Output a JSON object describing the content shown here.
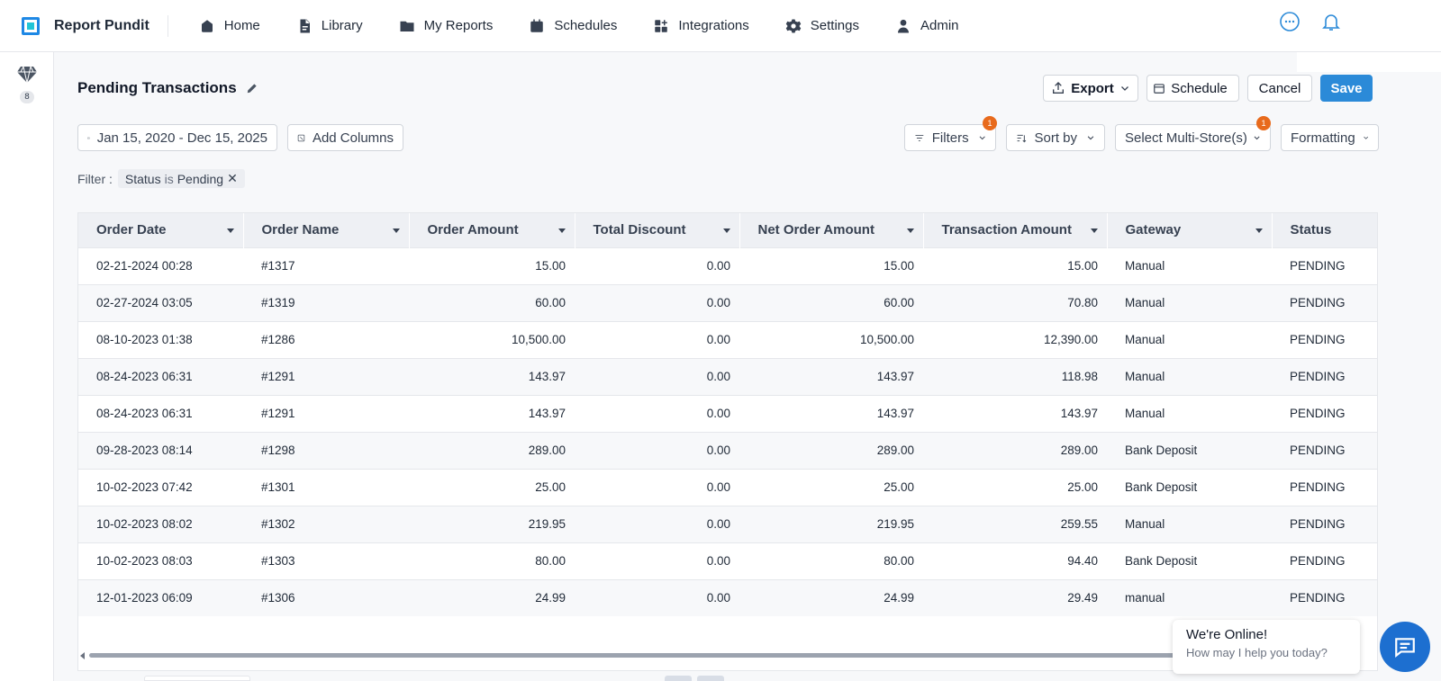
{
  "app": {
    "name": "Report Pundit"
  },
  "nav": [
    {
      "label": "Home",
      "icon": "home-icon"
    },
    {
      "label": "Library",
      "icon": "document-icon"
    },
    {
      "label": "My Reports",
      "icon": "folder-icon"
    },
    {
      "label": "Schedules",
      "icon": "calendar-icon"
    },
    {
      "label": "Integrations",
      "icon": "apps-icon"
    },
    {
      "label": "Settings",
      "icon": "gear-icon"
    },
    {
      "label": "Admin",
      "icon": "user-icon"
    }
  ],
  "rail": {
    "count": "8"
  },
  "report": {
    "title": "Pending Transactions"
  },
  "actions": {
    "export": "Export",
    "schedule": "Schedule",
    "cancel": "Cancel",
    "save": "Save"
  },
  "toolbar": {
    "date_range": "Jan 15, 2020 - Dec 15, 2025",
    "add_columns": "Add Columns",
    "filters": "Filters",
    "filters_badge": "1",
    "sort_by": "Sort by",
    "multi_store": "Select Multi-Store(s)",
    "multi_store_badge": "1",
    "formatting": "Formatting"
  },
  "filter": {
    "label": "Filter :",
    "field": "Status",
    "op": "is",
    "value": "Pending"
  },
  "table": {
    "columns": [
      "Order Date",
      "Order Name",
      "Order Amount",
      "Total Discount",
      "Net Order Amount",
      "Transaction Amount",
      "Gateway",
      "Status"
    ],
    "rows": [
      [
        "02-21-2024 00:28",
        "#1317",
        "15.00",
        "0.00",
        "15.00",
        "15.00",
        "Manual",
        "PENDING"
      ],
      [
        "02-27-2024 03:05",
        "#1319",
        "60.00",
        "0.00",
        "60.00",
        "70.80",
        "Manual",
        "PENDING"
      ],
      [
        "08-10-2023 01:38",
        "#1286",
        "10,500.00",
        "0.00",
        "10,500.00",
        "12,390.00",
        "Manual",
        "PENDING"
      ],
      [
        "08-24-2023 06:31",
        "#1291",
        "143.97",
        "0.00",
        "143.97",
        "118.98",
        "Manual",
        "PENDING"
      ],
      [
        "08-24-2023 06:31",
        "#1291",
        "143.97",
        "0.00",
        "143.97",
        "143.97",
        "Manual",
        "PENDING"
      ],
      [
        "09-28-2023 08:14",
        "#1298",
        "289.00",
        "0.00",
        "289.00",
        "289.00",
        "Bank Deposit",
        "PENDING"
      ],
      [
        "10-02-2023 07:42",
        "#1301",
        "25.00",
        "0.00",
        "25.00",
        "25.00",
        "Bank Deposit",
        "PENDING"
      ],
      [
        "10-02-2023 08:02",
        "#1302",
        "219.95",
        "0.00",
        "219.95",
        "259.55",
        "Manual",
        "PENDING"
      ],
      [
        "10-02-2023 08:03",
        "#1303",
        "80.00",
        "0.00",
        "80.00",
        "94.40",
        "Bank Deposit",
        "PENDING"
      ],
      [
        "12-01-2023 06:09",
        "#1306",
        "24.99",
        "0.00",
        "24.99",
        "29.49",
        "manual",
        "PENDING"
      ]
    ]
  },
  "chat": {
    "title": "We're Online!",
    "subtitle": "How may I help you today?"
  },
  "colors": {
    "accent": "#2b8ad8",
    "badge": "#e86a1c",
    "chat": "#1d6fd0"
  }
}
